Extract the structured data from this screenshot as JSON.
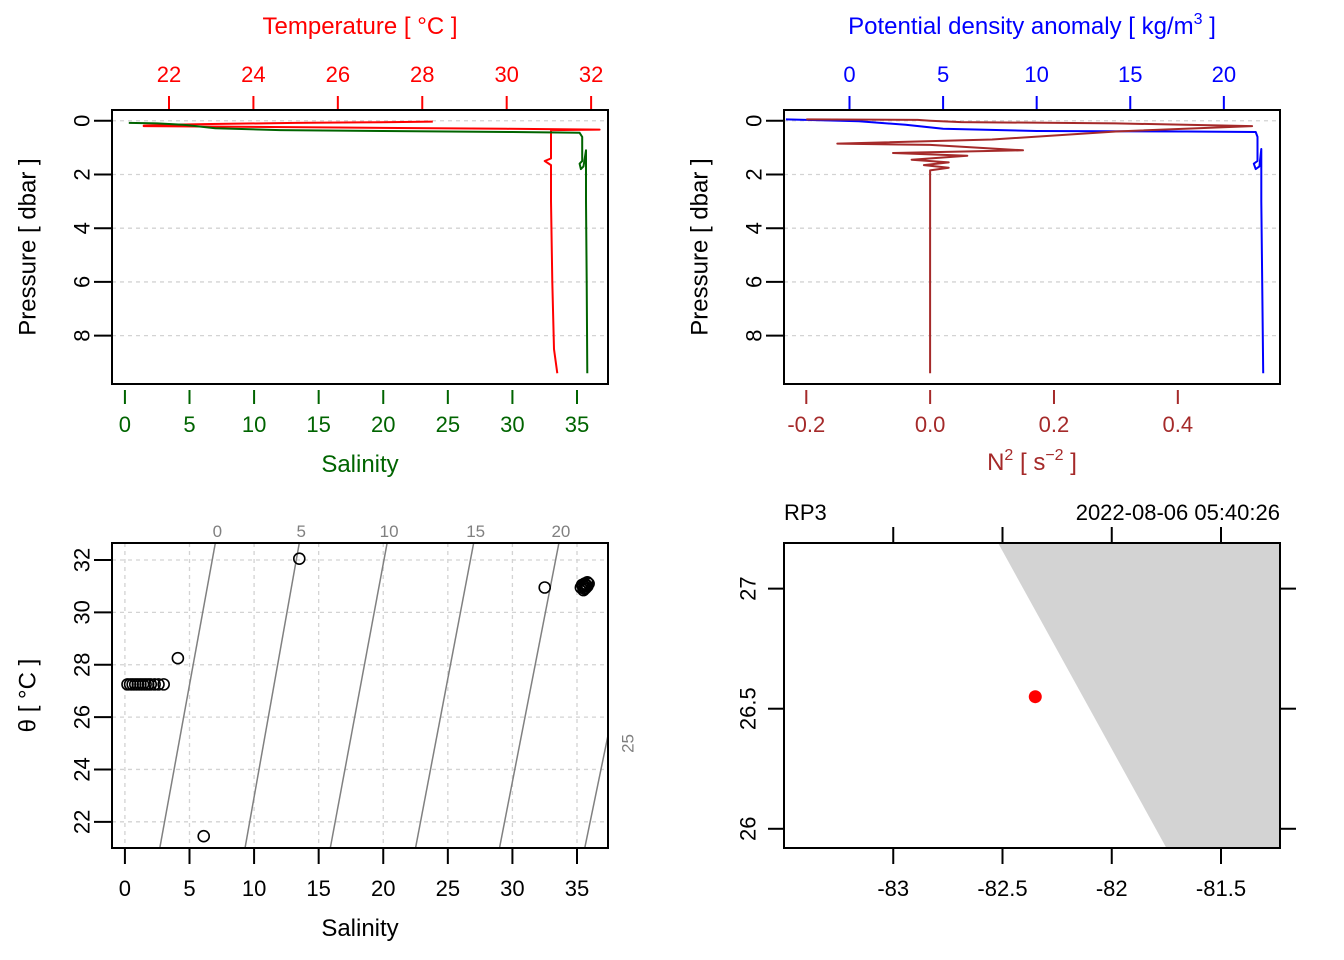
{
  "chart_data": [
    {
      "id": "profile_ts",
      "type": "line",
      "yaxis": {
        "label": "Pressure [ dbar ]",
        "ticks": [
          0,
          2,
          4,
          6,
          8
        ],
        "range": [
          9.8,
          -0.4
        ],
        "inverted": true
      },
      "top_axis": {
        "label": "Temperature [ °C ]",
        "ticks": [
          22,
          24,
          26,
          28,
          30,
          32
        ],
        "range": [
          20.65,
          32.4
        ],
        "color": "#ff0000"
      },
      "bottom_axis": {
        "label": "Salinity",
        "ticks": [
          0,
          5,
          10,
          15,
          20,
          25,
          30,
          35
        ],
        "range": [
          -1.0,
          37.4
        ],
        "color": "#006400"
      },
      "grid": true,
      "series": [
        {
          "name": "Temperature",
          "axis": "top",
          "color": "#ff0000",
          "points": [
            [
              28.25,
              0.03
            ],
            [
              27.3,
              0.05
            ],
            [
              26.5,
              0.06
            ],
            [
              25.0,
              0.08
            ],
            [
              23.0,
              0.12
            ],
            [
              22.0,
              0.15
            ],
            [
              21.4,
              0.18
            ],
            [
              21.4,
              0.2
            ],
            [
              26.0,
              0.25
            ],
            [
              30.0,
              0.3
            ],
            [
              32.2,
              0.33
            ],
            [
              31.05,
              0.35
            ],
            [
              31.05,
              1.4
            ],
            [
              30.9,
              1.5
            ],
            [
              31.05,
              1.65
            ],
            [
              31.05,
              1.75
            ],
            [
              31.05,
              3.0
            ],
            [
              31.08,
              6.0
            ],
            [
              31.12,
              8.5
            ],
            [
              31.2,
              9.4
            ]
          ]
        },
        {
          "name": "Salinity",
          "axis": "bottom",
          "color": "#006400",
          "points": [
            [
              0.3,
              0.08
            ],
            [
              2.5,
              0.1
            ],
            [
              4.5,
              0.15
            ],
            [
              5.5,
              0.2
            ],
            [
              7.0,
              0.28
            ],
            [
              12.0,
              0.35
            ],
            [
              20.0,
              0.38
            ],
            [
              30.0,
              0.42
            ],
            [
              35.2,
              0.45
            ],
            [
              35.4,
              0.6
            ],
            [
              35.4,
              1.5
            ],
            [
              35.2,
              1.6
            ],
            [
              35.3,
              1.8
            ],
            [
              35.5,
              1.7
            ],
            [
              35.7,
              1.1
            ],
            [
              35.7,
              3.0
            ],
            [
              35.75,
              6.0
            ],
            [
              35.8,
              9.4
            ]
          ]
        }
      ]
    },
    {
      "id": "profile_density_n2",
      "type": "line",
      "yaxis": {
        "label": "Pressure [ dbar ]",
        "ticks": [
          0,
          2,
          4,
          6,
          8
        ],
        "range": [
          9.8,
          -0.4
        ],
        "inverted": true
      },
      "top_axis": {
        "label": "Potential density anomaly [ kg/m3 ]",
        "ticks": [
          0,
          5,
          10,
          15,
          20
        ],
        "range": [
          -3.5,
          23.0
        ],
        "color": "#0000ff"
      },
      "bottom_axis": {
        "label": "N2 [ s-2 ]",
        "ticks": [
          "-0.2",
          "0.0",
          "0.2",
          "0.4"
        ],
        "tick_values": [
          -0.2,
          0.0,
          0.2,
          0.4
        ],
        "range": [
          -0.236,
          0.565
        ],
        "color": "#a52a2a"
      },
      "grid": true,
      "series": [
        {
          "name": "Potential density anomaly",
          "axis": "top",
          "color": "#0000ff",
          "points": [
            [
              -3.4,
              -0.05
            ],
            [
              -0.5,
              0.0
            ],
            [
              0.5,
              0.02
            ],
            [
              3.0,
              0.15
            ],
            [
              5.0,
              0.3
            ],
            [
              10.0,
              0.38
            ],
            [
              18.0,
              0.4
            ],
            [
              21.7,
              0.42
            ],
            [
              21.8,
              0.6
            ],
            [
              21.8,
              1.5
            ],
            [
              21.6,
              1.6
            ],
            [
              21.7,
              1.8
            ],
            [
              21.9,
              1.7
            ],
            [
              22.0,
              1.05
            ],
            [
              22.0,
              3.0
            ],
            [
              22.05,
              6.0
            ],
            [
              22.1,
              9.4
            ]
          ]
        },
        {
          "name": "N2",
          "axis": "bottom",
          "color": "#a52a2a",
          "points": [
            [
              -0.2,
              -0.05
            ],
            [
              -0.02,
              -0.03
            ],
            [
              0.0,
              0.0
            ],
            [
              0.05,
              0.05
            ],
            [
              0.3,
              0.1
            ],
            [
              0.52,
              0.2
            ],
            [
              0.3,
              0.4
            ],
            [
              0.1,
              0.7
            ],
            [
              -0.15,
              0.85
            ],
            [
              0.0,
              0.9
            ],
            [
              0.15,
              1.1
            ],
            [
              -0.06,
              1.2
            ],
            [
              0.06,
              1.3
            ],
            [
              -0.03,
              1.45
            ],
            [
              0.03,
              1.55
            ],
            [
              -0.01,
              1.65
            ],
            [
              0.03,
              1.75
            ],
            [
              0.0,
              1.85
            ],
            [
              0.0,
              2.0
            ],
            [
              0.0,
              4.0
            ],
            [
              0.0,
              6.0
            ],
            [
              0.0,
              9.4
            ]
          ]
        }
      ]
    },
    {
      "id": "ts_diagram",
      "type": "scatter",
      "xlabel": "Salinity",
      "ylabel": "θ [ °C ]",
      "xaxis": {
        "ticks": [
          0,
          5,
          10,
          15,
          20,
          25,
          30,
          35
        ],
        "range": [
          -1.0,
          37.4
        ]
      },
      "yaxis": {
        "ticks": [
          22,
          24,
          26,
          28,
          30,
          32
        ],
        "range": [
          21.0,
          32.65
        ]
      },
      "grid": true,
      "isopycnals": {
        "color": "#808080",
        "labels": [
          "0",
          "5",
          "10",
          "15",
          "20",
          "25"
        ],
        "values": [
          0,
          5,
          10,
          15,
          20,
          25
        ],
        "lines": [
          [
            [
              2.7,
              21.0
            ],
            [
              7.0,
              32.65
            ]
          ],
          [
            [
              9.3,
              21.0
            ],
            [
              13.5,
              32.65
            ]
          ],
          [
            [
              15.9,
              21.0
            ],
            [
              20.3,
              32.65
            ]
          ],
          [
            [
              22.5,
              21.0
            ],
            [
              27.0,
              32.65
            ]
          ],
          [
            [
              29.0,
              21.0
            ],
            [
              33.6,
              32.65
            ]
          ],
          [
            [
              35.6,
              21.0
            ],
            [
              37.4,
              25.3
            ]
          ]
        ]
      },
      "points": [
        [
          0.2,
          27.25
        ],
        [
          0.4,
          27.25
        ],
        [
          0.6,
          27.25
        ],
        [
          0.8,
          27.25
        ],
        [
          1.0,
          27.25
        ],
        [
          1.2,
          27.25
        ],
        [
          1.4,
          27.25
        ],
        [
          1.6,
          27.25
        ],
        [
          1.8,
          27.25
        ],
        [
          2.0,
          27.25
        ],
        [
          2.3,
          27.25
        ],
        [
          2.6,
          27.25
        ],
        [
          3.0,
          27.25
        ],
        [
          4.1,
          28.25
        ],
        [
          6.1,
          21.45
        ],
        [
          13.5,
          32.05
        ],
        [
          32.5,
          30.95
        ],
        [
          35.3,
          30.95
        ],
        [
          35.4,
          31.05
        ],
        [
          35.5,
          31.0
        ],
        [
          35.6,
          31.1
        ],
        [
          35.7,
          31.05
        ],
        [
          35.8,
          31.15
        ],
        [
          35.6,
          30.9
        ],
        [
          35.9,
          31.1
        ],
        [
          35.5,
          30.85
        ],
        [
          35.7,
          30.95
        ],
        [
          35.8,
          31.0
        ]
      ]
    },
    {
      "id": "location_map",
      "type": "map",
      "station": "RP3",
      "datetime": "2022-08-06 05:40:26",
      "xaxis": {
        "ticks": [
          "-83",
          "-82.5",
          "-82",
          "-81.5"
        ],
        "tick_values": [
          -83,
          -82.5,
          -82,
          -81.5
        ],
        "range": [
          -83.5,
          -81.23
        ]
      },
      "yaxis": {
        "ticks": [
          "26",
          "26.5",
          "27"
        ],
        "tick_values": [
          26.0,
          26.5,
          27.0
        ],
        "range": [
          25.92,
          27.19
        ]
      },
      "land_color": "#d3d3d3",
      "land_polygon": [
        [
          -82.52,
          27.19
        ],
        [
          -81.23,
          27.19
        ],
        [
          -81.23,
          25.92
        ],
        [
          -81.75,
          25.92
        ]
      ],
      "station_point": {
        "lon": -82.35,
        "lat": 26.55,
        "color": "#ff0000"
      }
    }
  ]
}
